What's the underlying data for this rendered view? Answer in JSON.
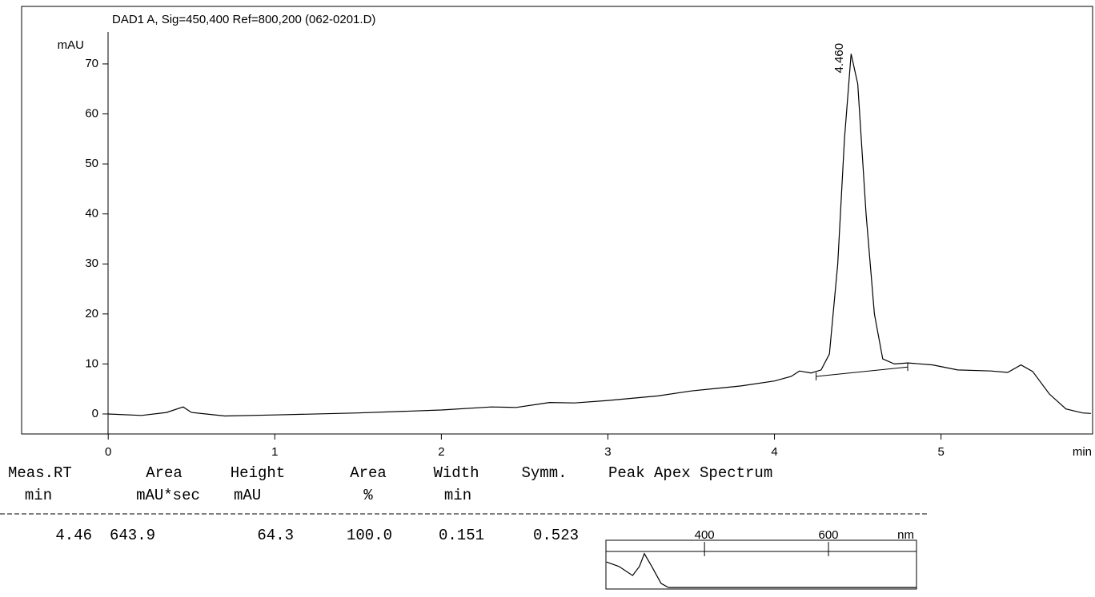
{
  "chart_data": [
    {
      "type": "line",
      "title": "DAD1 A, Sig=450,400 Ref=800,200 (062-0201.D)",
      "y_label": "mAU",
      "x_label": "min",
      "x": [
        0,
        0.2,
        0.35,
        0.45,
        0.5,
        0.7,
        1.0,
        1.5,
        2.0,
        2.3,
        2.45,
        2.65,
        2.8,
        3.0,
        3.3,
        3.5,
        3.8,
        4.0,
        4.1,
        4.15,
        4.22,
        4.28,
        4.33,
        4.38,
        4.42,
        4.46,
        4.5,
        4.55,
        4.6,
        4.65,
        4.72,
        4.8,
        4.95,
        5.1,
        5.3,
        5.4,
        5.48,
        5.55,
        5.65,
        5.75,
        5.85,
        5.9
      ],
      "values": [
        0.0,
        -0.3,
        0.3,
        1.4,
        0.3,
        -0.4,
        -0.2,
        0.2,
        0.8,
        1.4,
        1.3,
        2.3,
        2.2,
        2.7,
        3.6,
        4.6,
        5.6,
        6.6,
        7.5,
        8.6,
        8.2,
        8.8,
        12,
        30,
        55,
        72,
        66,
        40,
        20,
        11,
        10,
        10.2,
        9.8,
        8.8,
        8.6,
        8.3,
        9.8,
        8.5,
        4.0,
        1.0,
        0.2,
        0.1
      ],
      "color": "#000000",
      "xlim": [
        -0.52,
        5.91
      ],
      "ylim": [
        -4,
        81.5
      ],
      "xticks": [
        0,
        1,
        2,
        3,
        4,
        5
      ],
      "yticks": [
        0,
        10,
        20,
        30,
        40,
        50,
        60,
        70
      ],
      "annotations": [
        {
          "text": "4.460",
          "x": 4.46,
          "y": 72
        }
      ],
      "peak_baseline": {
        "x": [
          4.25,
          4.8
        ],
        "values": [
          7.5,
          9.4
        ]
      }
    },
    {
      "type": "line",
      "x_label": "nm",
      "x": [
        242,
        262,
        284,
        295,
        303,
        315,
        330,
        342,
        742
      ],
      "values": [
        0.72,
        0.6,
        0.36,
        0.6,
        0.94,
        0.6,
        0.15,
        0.04,
        0.04
      ],
      "color": "#000000",
      "xlim": [
        241,
        742
      ],
      "ylim": [
        0,
        1
      ],
      "xticks": [
        400,
        600
      ]
    }
  ],
  "table": {
    "header": [
      [
        "Meas.RT",
        "Area",
        "Height",
        "Area",
        "Width",
        "Symm.",
        "Peak Apex Spectrum"
      ],
      [
        "min",
        "mAU*sec",
        "mAU",
        "%",
        "min"
      ]
    ],
    "rows": [
      [
        "4.46",
        "643.9",
        "64.3",
        "100.0",
        "0.151",
        "0.523"
      ]
    ]
  }
}
